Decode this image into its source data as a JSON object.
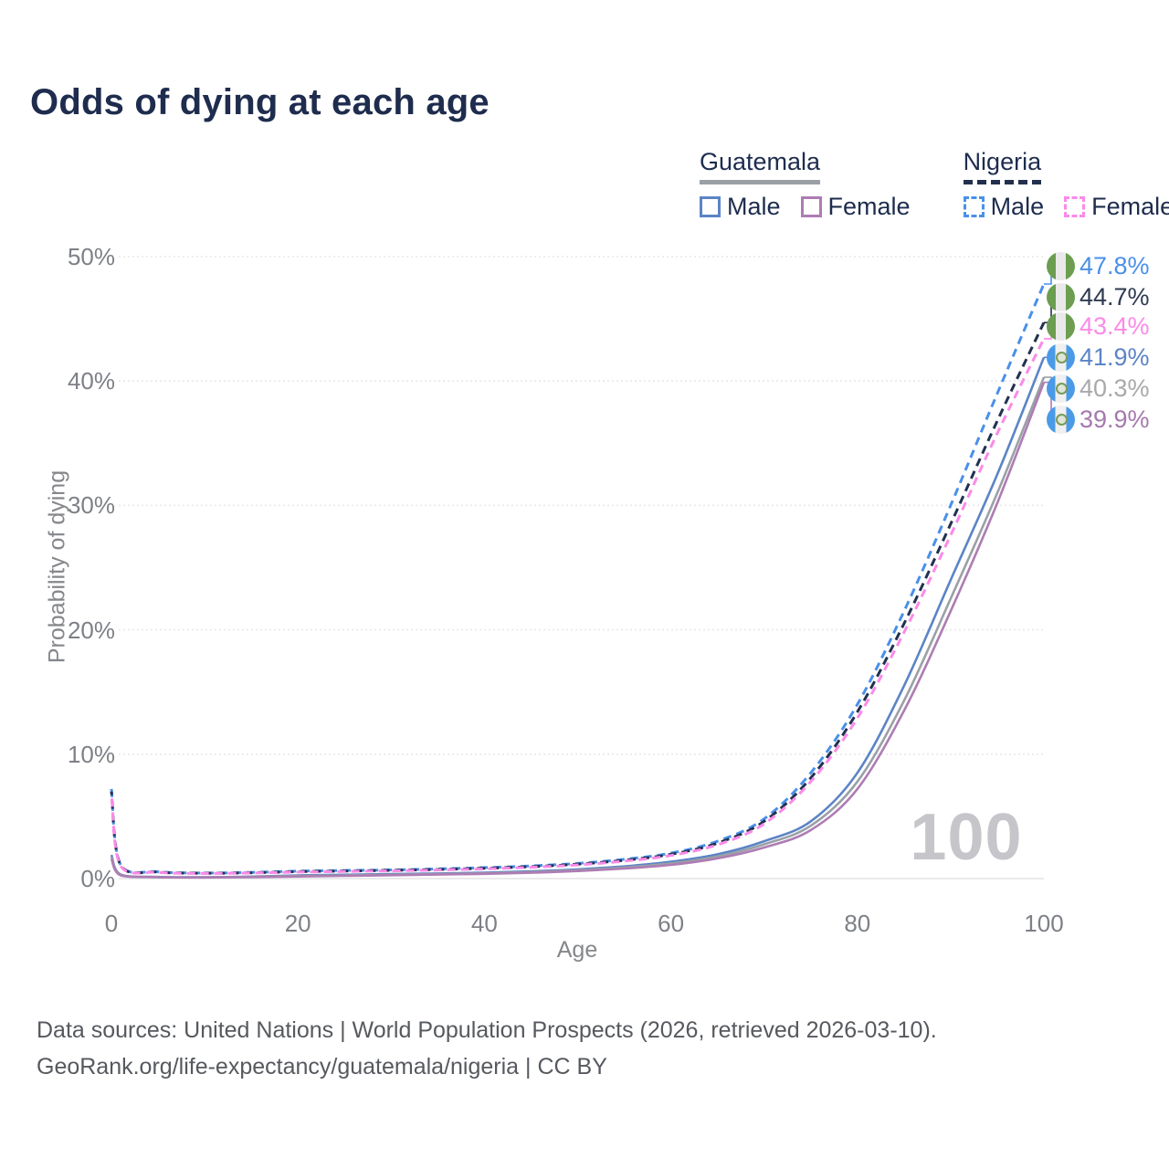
{
  "title": "Odds of dying at each age",
  "watermark": "100",
  "axes": {
    "y_label": "Probability of dying",
    "x_label": "Age",
    "y_ticks": [
      {
        "label": "0%",
        "value": 0
      },
      {
        "label": "10%",
        "value": 10
      },
      {
        "label": "20%",
        "value": 20
      },
      {
        "label": "30%",
        "value": 30
      },
      {
        "label": "40%",
        "value": 40
      },
      {
        "label": "50%",
        "value": 50
      }
    ],
    "x_ticks": [
      {
        "label": "0",
        "value": 0
      },
      {
        "label": "20",
        "value": 20
      },
      {
        "label": "40",
        "value": 40
      },
      {
        "label": "60",
        "value": 60
      },
      {
        "label": "80",
        "value": 80
      },
      {
        "label": "100",
        "value": 100
      }
    ]
  },
  "legend": {
    "groups": [
      {
        "title": "Guatemala",
        "line_style": "solid",
        "underline_color": "#9aa0a6",
        "items": [
          {
            "label": "Male",
            "color": "#5b84c6"
          },
          {
            "label": "Female",
            "color": "#ae7cb4"
          }
        ]
      },
      {
        "title": "Nigeria",
        "line_style": "dashed",
        "underline_color": "#22304d",
        "items": [
          {
            "label": "Male",
            "color": "#4a90e8"
          },
          {
            "label": "Female",
            "color": "#fb8ae8"
          }
        ]
      }
    ]
  },
  "footer": {
    "line1": "Data sources: United Nations | World Population Prospects (2026, retrieved 2026-03-10).",
    "line2": "GeoRank.org/life-expectancy/guatemala/nigeria | CC BY"
  },
  "chart_data": {
    "type": "line",
    "title": "Odds of dying at each age",
    "xlabel": "Age",
    "ylabel": "Probability of dying",
    "x_range": [
      0,
      100
    ],
    "y_range_percent": [
      0,
      50
    ],
    "grid": "horizontal-dotted",
    "legend_position": "top-right",
    "x": [
      0,
      1,
      5,
      10,
      15,
      20,
      25,
      30,
      35,
      40,
      45,
      50,
      55,
      60,
      65,
      70,
      75,
      80,
      85,
      90,
      95,
      100
    ],
    "series": [
      {
        "name": "Guatemala male",
        "country": "guatemala",
        "sex": "male",
        "color": "#5b84c6",
        "dash": "solid",
        "end_label": "41.9%",
        "label_color": "#5b84c6",
        "values": [
          1.9,
          0.32,
          0.13,
          0.11,
          0.16,
          0.26,
          0.31,
          0.36,
          0.41,
          0.47,
          0.58,
          0.74,
          0.98,
          1.35,
          1.95,
          3.0,
          4.6,
          8.5,
          15.5,
          24.0,
          32.5,
          41.9
        ]
      },
      {
        "name": "Guatemala both sexes",
        "country": "guatemala",
        "sex": "both",
        "color": "#9aa0a6",
        "dash": "solid",
        "end_label": "40.3%",
        "label_color": "#a9a9a9",
        "values": [
          1.75,
          0.29,
          0.12,
          0.1,
          0.14,
          0.21,
          0.26,
          0.31,
          0.36,
          0.42,
          0.52,
          0.67,
          0.89,
          1.22,
          1.78,
          2.75,
          4.25,
          7.8,
          14.3,
          22.5,
          31.0,
          40.3
        ]
      },
      {
        "name": "Guatemala female",
        "country": "guatemala",
        "sex": "female",
        "color": "#ae7cb4",
        "dash": "solid",
        "end_label": "39.9%",
        "label_color": "#a678ae",
        "values": [
          1.6,
          0.26,
          0.11,
          0.09,
          0.12,
          0.17,
          0.22,
          0.27,
          0.32,
          0.38,
          0.47,
          0.61,
          0.81,
          1.1,
          1.62,
          2.5,
          3.9,
          7.2,
          13.5,
          21.5,
          30.2,
          39.9
        ]
      },
      {
        "name": "Nigeria male",
        "country": "nigeria",
        "sex": "male",
        "color": "#4a90e8",
        "dash": "dashed",
        "end_label": "47.8%",
        "label_color": "#4a90e8",
        "values": [
          7.2,
          1.1,
          0.55,
          0.45,
          0.5,
          0.6,
          0.65,
          0.7,
          0.78,
          0.88,
          1.02,
          1.22,
          1.55,
          2.05,
          3.0,
          4.8,
          8.5,
          14.0,
          21.5,
          30.0,
          39.0,
          47.8
        ]
      },
      {
        "name": "Nigeria both sexes",
        "country": "nigeria",
        "sex": "both",
        "color": "#233150",
        "dash": "dashed",
        "end_label": "44.7%",
        "label_color": "#2e3a50",
        "values": [
          7.0,
          1.05,
          0.52,
          0.43,
          0.47,
          0.56,
          0.61,
          0.66,
          0.73,
          0.83,
          0.96,
          1.16,
          1.47,
          1.95,
          2.85,
          4.6,
          8.1,
          13.4,
          20.5,
          28.5,
          36.8,
          44.7
        ]
      },
      {
        "name": "Nigeria female",
        "country": "nigeria",
        "sex": "female",
        "color": "#fb8ae8",
        "dash": "dashed",
        "end_label": "43.4%",
        "label_color": "#fb8ae8",
        "values": [
          6.8,
          1.0,
          0.5,
          0.41,
          0.45,
          0.52,
          0.57,
          0.62,
          0.69,
          0.78,
          0.91,
          1.1,
          1.4,
          1.86,
          2.72,
          4.4,
          7.8,
          12.9,
          19.8,
          27.6,
          35.8,
          43.4
        ]
      }
    ],
    "end_label_order_top_to_bottom": [
      "Nigeria male",
      "Nigeria both sexes",
      "Nigeria female",
      "Guatemala male",
      "Guatemala both sexes",
      "Guatemala female"
    ]
  }
}
